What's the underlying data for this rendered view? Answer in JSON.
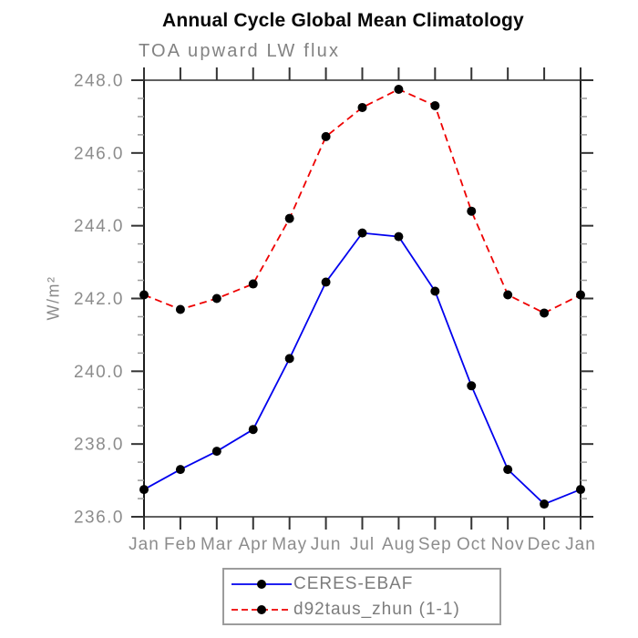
{
  "chart_data": {
    "type": "line",
    "title": "Annual Cycle Global Mean Climatology",
    "subtitle": "TOA upward LW flux",
    "xlabel": "",
    "ylabel": "W/m²",
    "categories": [
      "Jan",
      "Feb",
      "Mar",
      "Apr",
      "May",
      "Jun",
      "Jul",
      "Aug",
      "Sep",
      "Oct",
      "Nov",
      "Dec",
      "Jan"
    ],
    "series": [
      {
        "name": "CERES-EBAF",
        "color": "#0000ee",
        "line_style": "solid",
        "marker": "filled-circle",
        "marker_color": "#000000",
        "values": [
          236.75,
          237.3,
          237.8,
          238.4,
          240.35,
          242.45,
          243.8,
          243.7,
          242.2,
          239.6,
          237.3,
          236.35,
          236.75
        ]
      },
      {
        "name": "d92taus_zhun (1-1)",
        "color": "#ee0000",
        "line_style": "dashed",
        "marker": "filled-circle",
        "marker_color": "#000000",
        "values": [
          242.1,
          241.7,
          242.0,
          242.4,
          244.2,
          246.45,
          247.25,
          247.75,
          247.3,
          244.4,
          242.1,
          241.6,
          242.1
        ]
      }
    ],
    "ylim": [
      236.0,
      248.0
    ],
    "ytick_labels": [
      "236.0",
      "238.0",
      "240.0",
      "242.0",
      "244.0",
      "246.0",
      "248.0"
    ],
    "ytick_major": 2.0,
    "ytick_minor": 0.5,
    "grid": false,
    "tick_direction": "out",
    "legend_position": "bottom-center"
  },
  "colors": {
    "frame_horizontal": "#606060",
    "frame_vertical": "#1c1c1c",
    "tick_major": "#333333",
    "tick_minor": "#9b9b9b",
    "axis_text": "#8c8c8c",
    "title_text": "#060606",
    "subtitle_text": "#828282",
    "legend_border": "#9c9c9c",
    "legend_text": "#7c7c7c",
    "background": "#ffffff"
  }
}
